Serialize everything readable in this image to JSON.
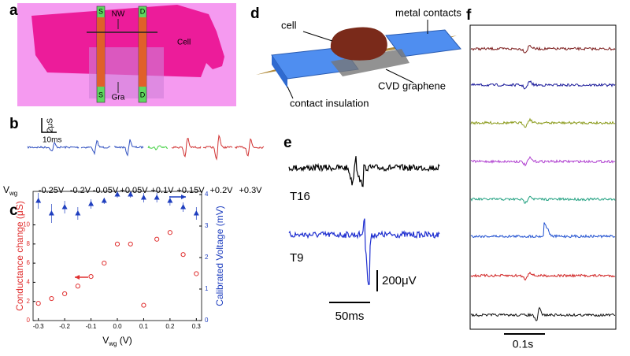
{
  "panel_labels": [
    "a",
    "b",
    "c",
    "d",
    "e",
    "f"
  ],
  "panel_a": {
    "nw": "NW",
    "cell": "Cell",
    "gra": "Gra",
    "source": "S",
    "drain": "D"
  },
  "panel_b": {
    "scale_y": "2μS",
    "scale_x": "10ms",
    "vwg_main": "V",
    "vwg_sub": "wg",
    "voltages": [
      "-0.25V",
      "-0.2V",
      "-0.05V",
      "+0.05V",
      "+0.1V",
      "+0.15V",
      "+0.2V",
      "+0.3V"
    ]
  },
  "chart_data": {
    "type": "scatter",
    "xlabel_parts": [
      "V",
      "wg",
      " (V)"
    ],
    "ylabel": "Conductance change (μS)",
    "y2label": "Calibrated Voltage (mV)",
    "x": [
      -0.3,
      -0.25,
      -0.2,
      -0.15,
      -0.1,
      -0.05,
      0,
      0.05,
      0.1,
      0.15,
      0.2,
      0.25,
      0.3
    ],
    "series": [
      {
        "color": "#e03030",
        "marker": "circle",
        "values": [
          1.8,
          2.3,
          2.8,
          3.6,
          4.6,
          6.0,
          8.0,
          8.0,
          1.6,
          8.5,
          9.2,
          6.9,
          4.9
        ]
      },
      {
        "color": "#1f3fbf",
        "marker": "triangle",
        "axis": "y2",
        "values": [
          3.8,
          3.4,
          3.6,
          3.4,
          3.7,
          3.8,
          4.0,
          4.0,
          3.9,
          3.9,
          3.8,
          3.6,
          3.4
        ],
        "errors": [
          0.25,
          0.3,
          0.2,
          0.2,
          0.15,
          0.1,
          0.1,
          0.1,
          0.15,
          0.15,
          0.15,
          0.15,
          0.2
        ]
      }
    ],
    "xlim": [
      -0.32,
      0.32
    ],
    "xticks": [
      -0.3,
      -0.2,
      -0.1,
      {
        "value": 0,
        "label": "0.0"
      },
      0.1,
      0.2,
      0.3
    ],
    "ylim": [
      0,
      13.5
    ],
    "yticks": [
      0,
      2,
      4,
      6,
      8,
      10
    ],
    "y2lim": [
      0,
      4.1
    ],
    "y2ticks": [
      0,
      1,
      2,
      3,
      4
    ]
  },
  "panel_d": {
    "cell": "cell",
    "metal": "metal contacts",
    "graphene": "CVD graphene",
    "insulation": "contact insulation"
  },
  "panel_e": {
    "traces": [
      "T16",
      "T9"
    ],
    "scale_y": "200μV",
    "scale_x": "50ms"
  },
  "panel_f": {
    "scale_x": "0.1s"
  }
}
